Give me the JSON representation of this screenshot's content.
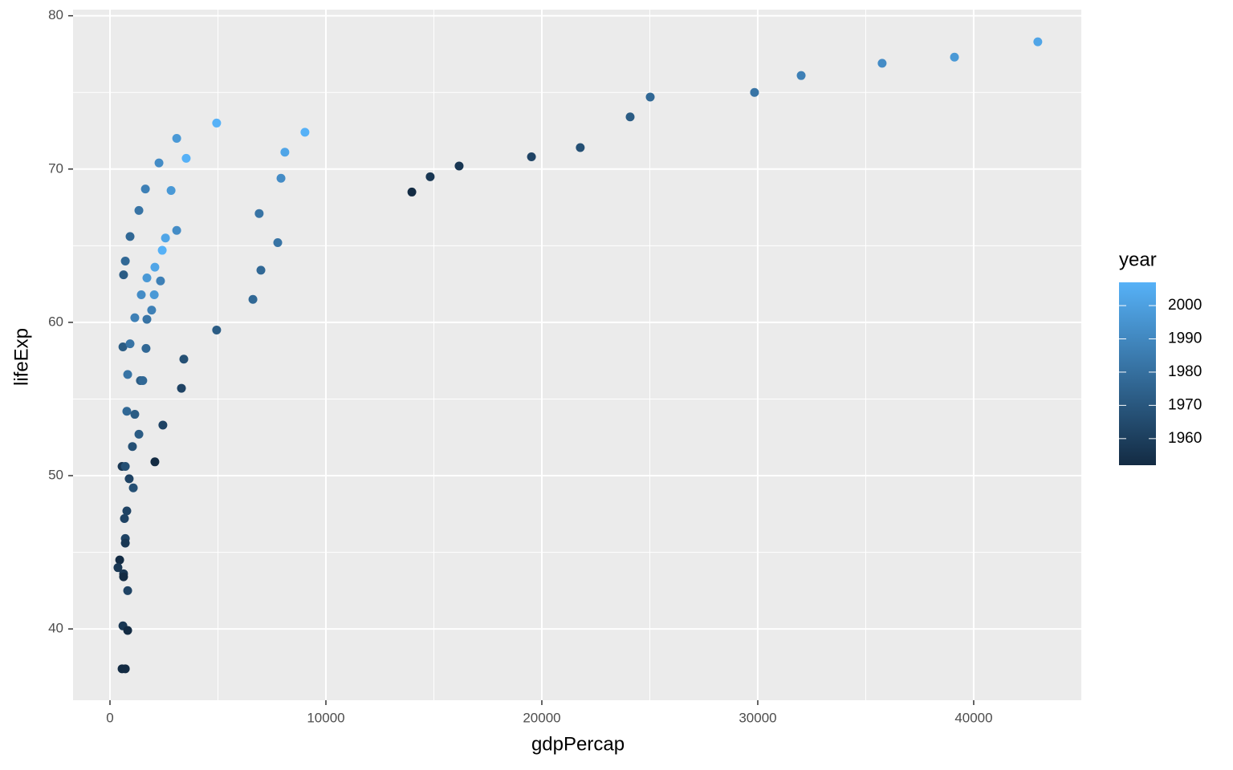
{
  "chart_data": {
    "type": "scatter",
    "x_label": "gdpPercap",
    "y_label": "lifeExp",
    "xlim": [
      -1710,
      45020
    ],
    "ylim": [
      35.35,
      80.4
    ],
    "xticks": [
      0,
      10000,
      20000,
      30000,
      40000
    ],
    "yticks": [
      40,
      50,
      60,
      70,
      80
    ],
    "grid": true,
    "legend_title": "year",
    "colorlim": [
      1952,
      2007
    ],
    "colorticks": [
      1960,
      1970,
      1980,
      1990,
      2000
    ],
    "color_low": "#132B43",
    "color_high": "#56B1F7",
    "x": [
      42970,
      39110,
      35760,
      32010,
      29850,
      25020,
      24090,
      21780,
      19520,
      16170,
      14830,
      13980,
      4940,
      3090,
      9030,
      3530,
      2270,
      8100,
      7920,
      1640,
      2830,
      1340,
      6910,
      3090,
      930,
      2570,
      7770,
      2420,
      710,
      2080,
      6990,
      630,
      1710,
      2340,
      1450,
      2050,
      6620,
      1930,
      1150,
      1710,
      4940,
      600,
      930,
      1670,
      3420,
      820,
      1410,
      1520,
      3310,
      780,
      1150,
      2450,
      1340,
      1040,
      2080,
      560,
      710,
      890,
      1080,
      780,
      670,
      710,
      710,
      450,
      370,
      630,
      630,
      820,
      600,
      820,
      560,
      710
    ],
    "y": [
      78.3,
      77.3,
      76.9,
      76.1,
      75.0,
      74.7,
      73.4,
      71.4,
      70.8,
      70.2,
      69.5,
      68.5,
      73.0,
      72.0,
      72.4,
      70.7,
      70.4,
      71.1,
      69.4,
      68.7,
      68.6,
      67.3,
      67.1,
      66.0,
      65.6,
      65.5,
      65.2,
      64.7,
      64.0,
      63.6,
      63.4,
      63.1,
      62.9,
      62.7,
      61.8,
      61.8,
      61.5,
      60.8,
      60.3,
      60.2,
      59.5,
      58.4,
      58.6,
      58.3,
      57.6,
      56.6,
      56.2,
      56.2,
      55.7,
      54.2,
      54.0,
      53.3,
      52.7,
      51.9,
      50.9,
      50.6,
      50.6,
      49.8,
      49.2,
      47.7,
      47.2,
      45.9,
      45.6,
      44.5,
      44.0,
      43.6,
      43.4,
      42.5,
      40.2,
      39.9,
      37.4,
      37.4
    ],
    "year": [
      2002,
      1997,
      1992,
      1987,
      1982,
      1977,
      1972,
      1967,
      1962,
      1957,
      1957,
      1952,
      2007,
      1997,
      2007,
      2007,
      1992,
      2002,
      1992,
      1987,
      1997,
      1982,
      1982,
      1992,
      1977,
      2002,
      1982,
      2007,
      1977,
      2002,
      1977,
      1972,
      1997,
      1987,
      1992,
      1997,
      1977,
      1987,
      1987,
      1982,
      1972,
      1972,
      1982,
      1977,
      1967,
      1982,
      1972,
      1977,
      1962,
      1977,
      1972,
      1962,
      1972,
      1967,
      1952,
      1957,
      1967,
      1962,
      1967,
      1962,
      1962,
      1962,
      1957,
      1952,
      1957,
      1957,
      1952,
      1962,
      1957,
      1952,
      1952,
      1952
    ]
  }
}
